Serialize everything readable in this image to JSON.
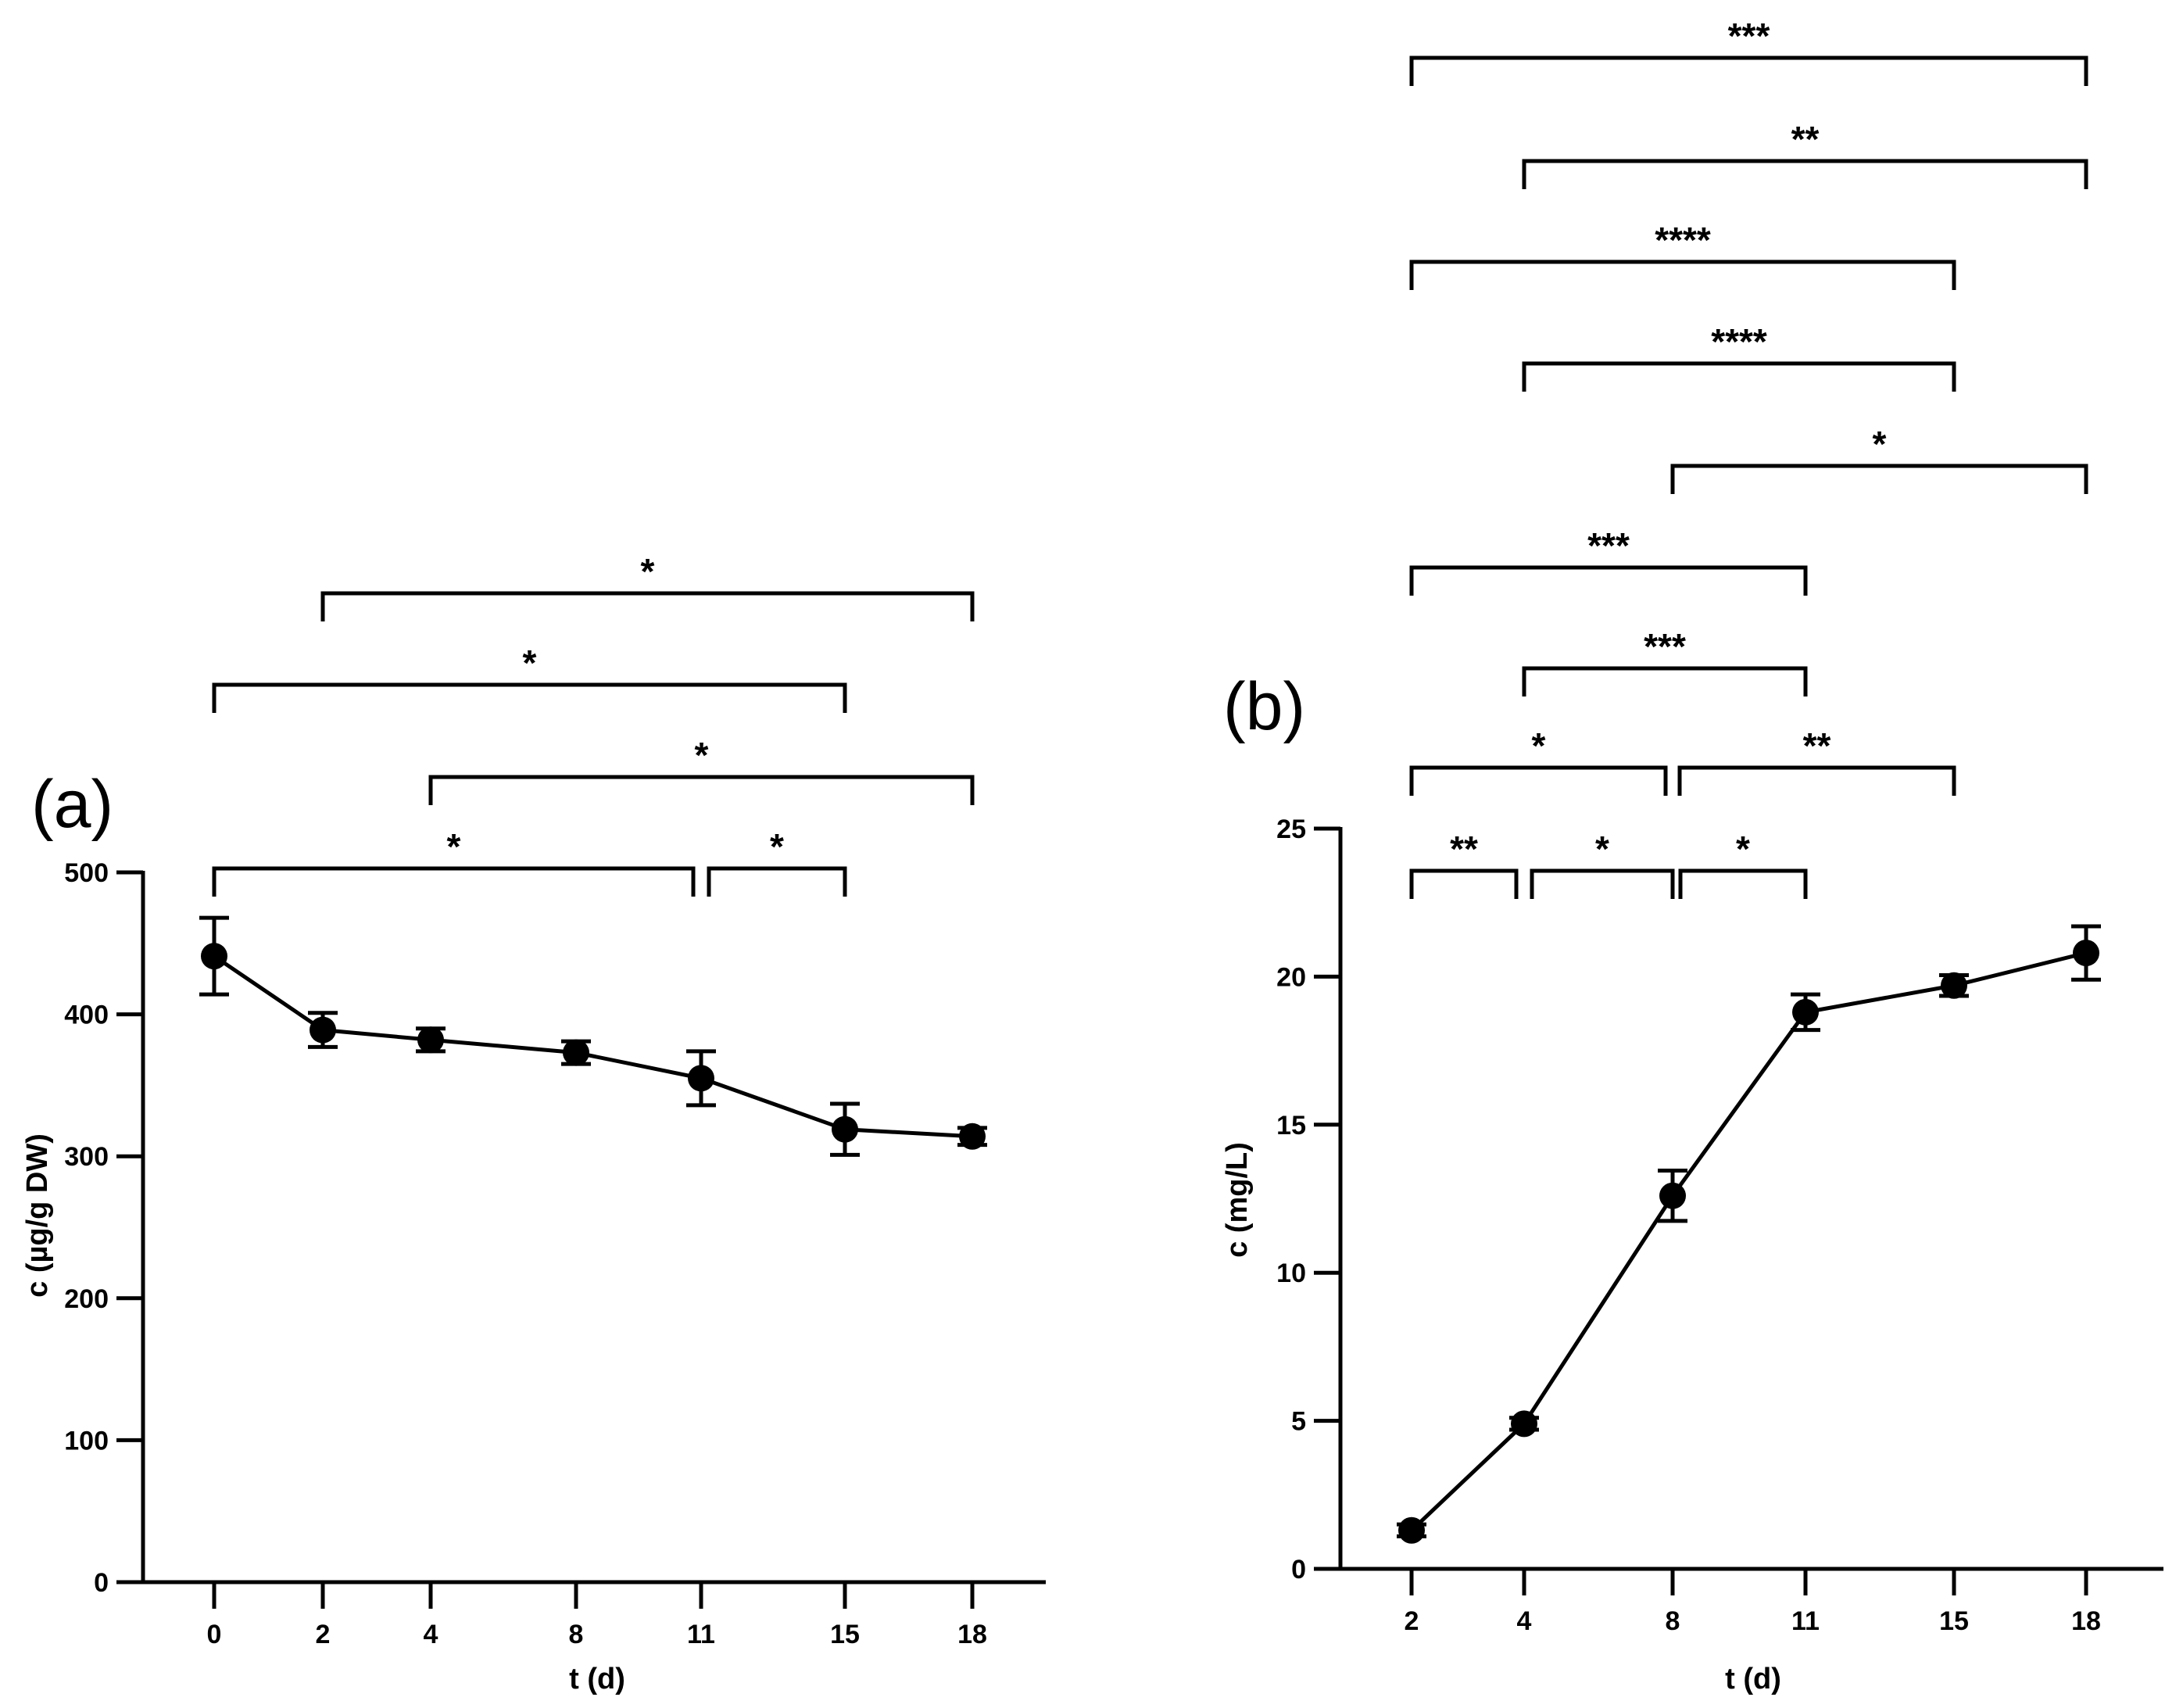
{
  "chart_data": [
    {
      "type": "line",
      "panel_label": "(a)",
      "xlabel": "t (d)",
      "ylabel": "c (µg/g DW)",
      "x": [
        0,
        2,
        4,
        8,
        11,
        15,
        18
      ],
      "x_tick_labels": [
        "0",
        "2",
        "4",
        "8",
        "11",
        "15",
        "18"
      ],
      "y_ticks": [
        0,
        100,
        200,
        300,
        400,
        500
      ],
      "y_tick_labels": [
        "0",
        "100",
        "200",
        "300",
        "400",
        "500"
      ],
      "ylim": [
        0,
        500
      ],
      "series": [
        {
          "name": "c",
          "values": [
            441,
            389,
            382,
            373,
            355,
            319,
            314
          ],
          "errors": [
            27,
            12,
            8,
            8,
            19,
            18,
            6
          ]
        }
      ],
      "significance": [
        {
          "from": 2,
          "to": 18,
          "label": "*"
        },
        {
          "from": 0,
          "to": 15,
          "label": "*"
        },
        {
          "from": 4,
          "to": 18,
          "label": "*"
        },
        {
          "from": 0,
          "to": 11,
          "label": "*"
        },
        {
          "from": 11,
          "to": 15,
          "label": "*"
        }
      ]
    },
    {
      "type": "line",
      "panel_label": "(b)",
      "xlabel": "t (d)",
      "ylabel": "c (mg/L)",
      "x": [
        2,
        4,
        8,
        11,
        15,
        18
      ],
      "x_tick_labels": [
        "2",
        "4",
        "8",
        "11",
        "15",
        "18"
      ],
      "y_ticks": [
        0,
        5,
        10,
        15,
        20,
        25
      ],
      "y_tick_labels": [
        "0",
        "5",
        "10",
        "15",
        "20",
        "25"
      ],
      "ylim": [
        0,
        25
      ],
      "series": [
        {
          "name": "c",
          "values": [
            1.3,
            4.9,
            12.6,
            18.8,
            19.7,
            20.8
          ],
          "errors": [
            0.2,
            0.2,
            0.85,
            0.6,
            0.35,
            0.9
          ]
        }
      ],
      "significance": [
        {
          "from": 2,
          "to": 18,
          "label": "***"
        },
        {
          "from": 4,
          "to": 18,
          "label": "**"
        },
        {
          "from": 2,
          "to": 15,
          "label": "****"
        },
        {
          "from": 4,
          "to": 15,
          "label": "****"
        },
        {
          "from": 8,
          "to": 18,
          "label": "*"
        },
        {
          "from": 2,
          "to": 11,
          "label": "***"
        },
        {
          "from": 4,
          "to": 11,
          "label": "***"
        },
        {
          "from": 2,
          "to": 8,
          "label": "*"
        },
        {
          "from": 8,
          "to": 15,
          "label": "**"
        },
        {
          "from": 2,
          "to": 4,
          "label": "**"
        },
        {
          "from": 4,
          "to": 8,
          "label": "*"
        },
        {
          "from": 8,
          "to": 11,
          "label": "*"
        }
      ]
    }
  ]
}
